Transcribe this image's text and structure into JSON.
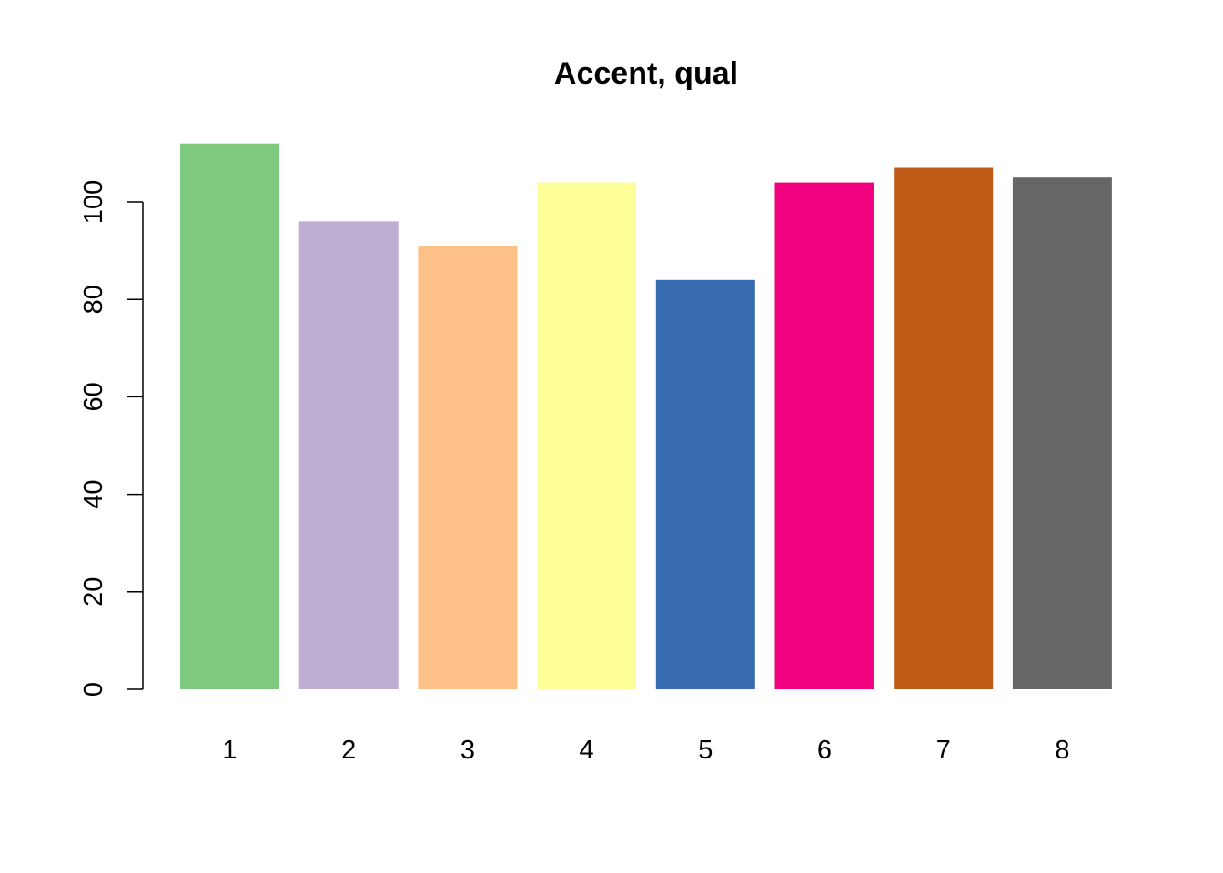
{
  "chart_data": {
    "type": "bar",
    "title": "Accent, qual",
    "xlabel": "",
    "ylabel": "",
    "categories": [
      "1",
      "2",
      "3",
      "4",
      "5",
      "6",
      "7",
      "8"
    ],
    "values": [
      112,
      96,
      91,
      104,
      84,
      104,
      107,
      105
    ],
    "colors": [
      "#7FC97F",
      "#BEAED4",
      "#FDC086",
      "#FFFF99",
      "#386CB0",
      "#F0027F",
      "#BF5B17",
      "#666666"
    ],
    "ylim": [
      0,
      115
    ],
    "yticks": [
      0,
      20,
      40,
      60,
      80,
      100
    ],
    "grid": false,
    "legend": "none"
  }
}
